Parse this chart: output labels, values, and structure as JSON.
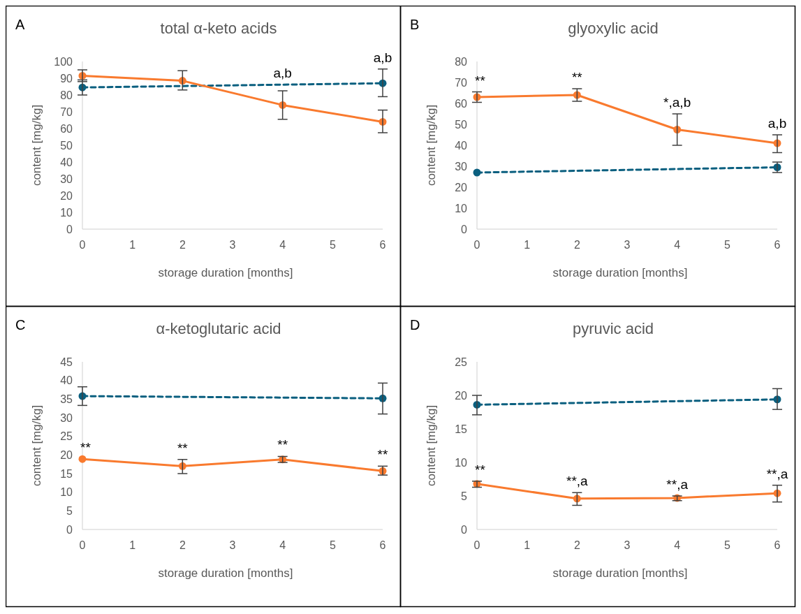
{
  "chart_data": [
    {
      "type": "line",
      "title": "total α-keto acids",
      "xlabel": "storage duration [months]",
      "ylabel": "content [mg/kg]",
      "xlim": [
        0,
        6
      ],
      "xticks": [
        0,
        1,
        2,
        3,
        4,
        5,
        6
      ],
      "ylim": [
        0,
        100
      ],
      "yticks": [
        0,
        10,
        20,
        30,
        40,
        50,
        60,
        70,
        80,
        90,
        100
      ],
      "grid": false,
      "legend": false,
      "marker": "circle",
      "annotations": [
        "A",
        {
          "text": "a,b",
          "x": 4,
          "y": 86.2
        },
        {
          "text": "a,b",
          "x": 6,
          "y": 87
        }
      ],
      "series": [
        {
          "color": "#0a5f7f",
          "line_style": "dashed",
          "x": [
            0,
            6
          ],
          "values": [
            84.5,
            87
          ],
          "errors": [
            [
              80,
              89
            ],
            [
              79,
              95.5
            ]
          ]
        },
        {
          "color": "#f97a2e",
          "line_style": "solid",
          "x": [
            0,
            2,
            4,
            6
          ],
          "values": [
            91.5,
            88.5,
            74,
            64
          ],
          "errors": [
            [
              88,
              95
            ],
            [
              83,
              94.5
            ],
            [
              65.5,
              82.5
            ],
            [
              57.5,
              71
            ]
          ]
        }
      ]
    },
    {
      "type": "line",
      "title": "glyoxylic acid",
      "xlabel": "storage duration [months]",
      "ylabel": "content [mg/kg]",
      "xlim": [
        0,
        6
      ],
      "xticks": [
        0,
        1,
        2,
        3,
        4,
        5,
        6
      ],
      "ylim": [
        0,
        80
      ],
      "yticks": [
        0,
        10,
        20,
        30,
        40,
        50,
        60,
        70,
        80
      ],
      "grid": false,
      "legend": false,
      "marker": "circle",
      "annotations": [
        "B",
        {
          "text": "**",
          "x": 0,
          "y": 63
        },
        {
          "text": "**",
          "x": 2,
          "y": 64
        },
        {
          "text": "*,a,b",
          "x": 4,
          "y": 47.5
        },
        {
          "text": "a,b",
          "x": 6,
          "y": 41
        }
      ],
      "series": [
        {
          "color": "#0a5f7f",
          "line_style": "dashed",
          "x": [
            0,
            6
          ],
          "values": [
            27,
            29.5
          ],
          "errors": [
            null,
            [
              27,
              32
            ]
          ]
        },
        {
          "color": "#f97a2e",
          "line_style": "solid",
          "x": [
            0,
            2,
            4,
            6
          ],
          "values": [
            63,
            64,
            47.5,
            41
          ],
          "errors": [
            [
              60.5,
              65.5
            ],
            [
              61,
              67
            ],
            [
              40,
              55
            ],
            [
              36.5,
              45
            ]
          ]
        }
      ]
    },
    {
      "type": "line",
      "title": "α-ketoglutaric acid",
      "xlabel": "storage duration [months]",
      "ylabel": "content [mg/kg]",
      "xlim": [
        0,
        6
      ],
      "xticks": [
        0,
        1,
        2,
        3,
        4,
        5,
        6
      ],
      "ylim": [
        0,
        45
      ],
      "yticks": [
        0,
        5,
        10,
        15,
        20,
        25,
        30,
        35,
        40,
        45
      ],
      "grid": false,
      "legend": false,
      "marker": "circle",
      "annotations": [
        "C",
        {
          "text": "**",
          "x": 0,
          "y": 18.9
        },
        {
          "text": "**",
          "x": 2,
          "y": 17
        },
        {
          "text": "**",
          "x": 4,
          "y": 18.8
        },
        {
          "text": "**",
          "x": 6,
          "y": 15.7
        }
      ],
      "series": [
        {
          "color": "#0a5f7f",
          "line_style": "dashed",
          "x": [
            0,
            6
          ],
          "values": [
            35.8,
            35.2
          ],
          "errors": [
            [
              33.3,
              38.3
            ],
            [
              31,
              39.3
            ]
          ]
        },
        {
          "color": "#f97a2e",
          "line_style": "solid",
          "x": [
            0,
            2,
            4,
            6
          ],
          "values": [
            18.9,
            17,
            18.8,
            15.7
          ],
          "errors": [
            null,
            [
              15,
              18.8
            ],
            [
              18,
              19.6
            ],
            [
              14.6,
              17
            ]
          ]
        }
      ]
    },
    {
      "type": "line",
      "title": "pyruvic acid",
      "xlabel": "storage duration [months]",
      "ylabel": "content [mg/kg]",
      "xlim": [
        0,
        6
      ],
      "xticks": [
        0,
        1,
        2,
        3,
        4,
        5,
        6
      ],
      "ylim": [
        0,
        25
      ],
      "yticks": [
        0,
        5,
        10,
        15,
        20,
        25
      ],
      "grid": false,
      "legend": false,
      "marker": "circle",
      "annotations": [
        "D",
        {
          "text": "**",
          "x": 0,
          "y": 6.8
        },
        {
          "text": "**,a",
          "x": 2,
          "y": 4.6
        },
        {
          "text": "**,a",
          "x": 4,
          "y": 4.7
        },
        {
          "text": "**,a",
          "x": 6,
          "y": 5.4
        }
      ],
      "series": [
        {
          "color": "#0a5f7f",
          "line_style": "dashed",
          "x": [
            0,
            6
          ],
          "values": [
            18.6,
            19.4
          ],
          "errors": [
            [
              17.1,
              20
            ],
            [
              17.9,
              21
            ]
          ]
        },
        {
          "color": "#f97a2e",
          "line_style": "solid",
          "x": [
            0,
            2,
            4,
            6
          ],
          "values": [
            6.8,
            4.6,
            4.7,
            5.4
          ],
          "errors": [
            [
              6.3,
              7.2
            ],
            [
              3.6,
              5.5
            ],
            [
              4.3,
              5
            ],
            [
              4.1,
              6.6
            ]
          ]
        }
      ]
    }
  ]
}
